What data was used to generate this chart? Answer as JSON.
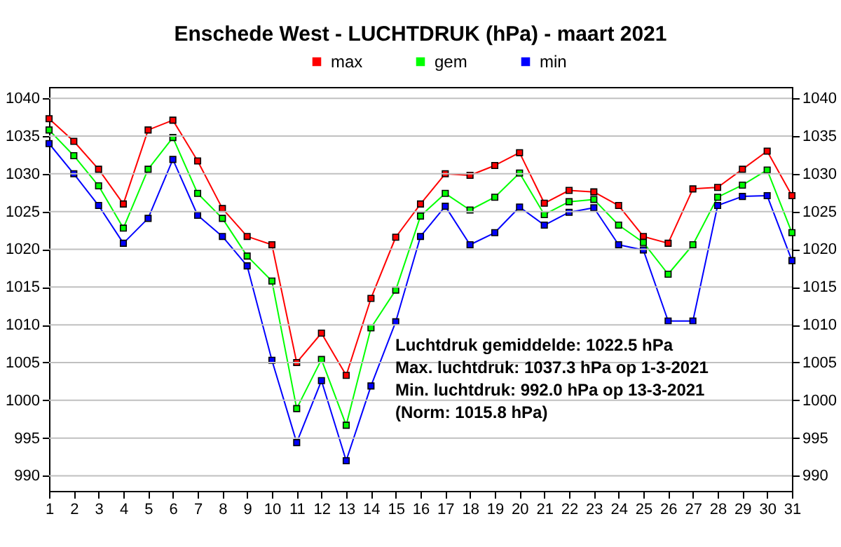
{
  "chart_data": {
    "type": "line",
    "title": "Enschede West  -  LUCHTDRUK (hPa)  -  maart 2021",
    "x": [
      1,
      2,
      3,
      4,
      5,
      6,
      7,
      8,
      9,
      10,
      11,
      12,
      13,
      14,
      15,
      16,
      17,
      18,
      19,
      20,
      21,
      22,
      23,
      24,
      25,
      26,
      27,
      28,
      29,
      30,
      31
    ],
    "series": [
      {
        "name": "max",
        "color": "#ff0000",
        "values": [
          1037.3,
          1034.3,
          1030.6,
          1026.0,
          1035.8,
          1037.1,
          1031.7,
          1025.4,
          1021.7,
          1020.6,
          1005.0,
          1008.9,
          1003.3,
          1013.5,
          1021.6,
          1026.0,
          1030.0,
          1029.8,
          1031.1,
          1032.8,
          1026.1,
          1027.8,
          1027.6,
          1025.8,
          1021.7,
          1020.8,
          1028.0,
          1028.2,
          1030.6,
          1033.0,
          1027.1
        ]
      },
      {
        "name": "gem",
        "color": "#00ff00",
        "values": [
          1035.8,
          1032.4,
          1028.4,
          1022.8,
          1030.6,
          1034.8,
          1027.4,
          1024.1,
          1019.1,
          1015.8,
          998.9,
          1005.4,
          996.7,
          1009.6,
          1014.6,
          1024.4,
          1027.4,
          1025.2,
          1026.9,
          1030.1,
          1024.6,
          1026.3,
          1026.6,
          1023.2,
          1020.9,
          1016.7,
          1020.6,
          1026.9,
          1028.5,
          1030.5,
          1022.2
        ]
      },
      {
        "name": "min",
        "color": "#0000ff",
        "values": [
          1034.0,
          1030.0,
          1025.8,
          1020.8,
          1024.1,
          1031.9,
          1024.5,
          1021.7,
          1017.8,
          1005.3,
          994.4,
          1002.6,
          992.0,
          1001.9,
          1010.4,
          1021.7,
          1025.7,
          1020.6,
          1022.2,
          1025.6,
          1023.2,
          1024.9,
          1025.5,
          1020.6,
          1019.9,
          1010.5,
          1010.5,
          1025.8,
          1027.0,
          1027.1,
          1018.5
        ]
      }
    ],
    "xlim": [
      1,
      31
    ],
    "xticks": [
      1,
      2,
      3,
      4,
      5,
      6,
      7,
      8,
      9,
      10,
      11,
      12,
      13,
      14,
      15,
      16,
      17,
      18,
      19,
      20,
      21,
      22,
      23,
      24,
      25,
      26,
      27,
      28,
      29,
      30,
      31
    ],
    "ylim": [
      988,
      1041.5
    ],
    "yticks": [
      990,
      995,
      1000,
      1005,
      1010,
      1015,
      1020,
      1025,
      1030,
      1035,
      1040
    ],
    "y2lim": [
      988,
      1041.5
    ],
    "y2ticks": [
      990,
      995,
      1000,
      1005,
      1010,
      1015,
      1020,
      1025,
      1030,
      1035,
      1040
    ],
    "grid": "y",
    "legend": "top",
    "marker": "square",
    "line_style": "solid",
    "annotations": [
      "Luchtdruk gemiddelde: 1022.5  hPa",
      "Max. luchtdruk: 1037.3  hPa op 1-3-2021",
      "Min. luchtdruk: 992.0  hPa op 13-3-2021",
      "(Norm: 1015.8 hPa)"
    ]
  }
}
